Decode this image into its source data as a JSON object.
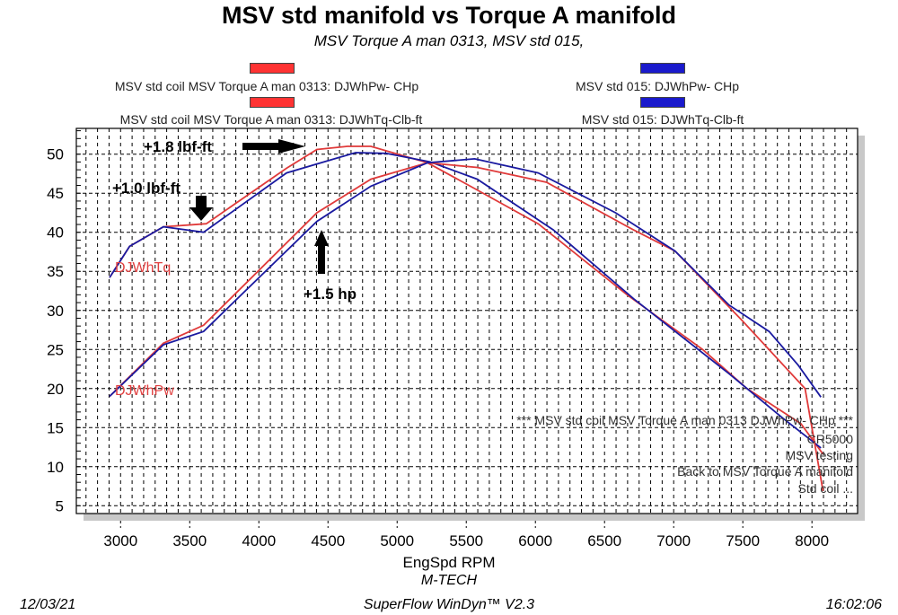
{
  "chart_data": {
    "type": "line",
    "title": "MSV std manifold vs Torque A manifold",
    "subtitle": "MSV Torque A man 0313, MSV std 015,",
    "xlabel": "EngSpd  RPM",
    "xlim": [
      2680,
      8330
    ],
    "ylim": [
      4,
      53.3
    ],
    "xticks": [
      3000,
      3500,
      4000,
      4500,
      5000,
      5500,
      6000,
      6500,
      7000,
      7500,
      8000
    ],
    "yticks": [
      5,
      10,
      15,
      20,
      25,
      30,
      35,
      40,
      45,
      50
    ],
    "grid": true,
    "legend": [
      {
        "label": "MSV std coil MSV Torque A man 0313: DJWhPw- CHp",
        "color": "#ff3333"
      },
      {
        "label": "MSV std 015: DJWhPw- CHp",
        "color": "#1a1acc"
      },
      {
        "label": "MSV std coil MSV Torque A man 0313: DJWhTq-Clb-ft",
        "color": "#ff3333"
      },
      {
        "label": "MSV std 015: DJWhTq-Clb-ft",
        "color": "#1a1acc"
      }
    ],
    "series": [
      {
        "name": "MSV std coil MSV Torque A man 0313: DJWhTq-Clb-ft",
        "color": "#e03a3a",
        "x": [
          2920,
          3065,
          3310,
          3620,
          4200,
          4420,
          4640,
          4810,
          5220,
          5560,
          6020,
          6670,
          7210,
          7530,
          7920,
          8080
        ],
        "y": [
          34.2,
          38.2,
          40.7,
          41.1,
          48.2,
          50.6,
          51.0,
          51.0,
          48.9,
          45.6,
          41.1,
          31.9,
          25.0,
          20.0,
          15.5,
          11.6
        ]
      },
      {
        "name": "MSV std 015: DJWhTq-Clb-ft",
        "color": "#1a1aa0",
        "x": [
          2920,
          3065,
          3310,
          3600,
          4200,
          4700,
          4920,
          5240,
          5580,
          6130,
          6710,
          7400,
          7790,
          8065
        ],
        "y": [
          34.2,
          38.2,
          40.7,
          40.0,
          47.6,
          50.2,
          50.1,
          49.0,
          46.8,
          40.3,
          31.5,
          21.9,
          16.2,
          12.4
        ]
      },
      {
        "name": "MSV std coil MSV Torque A man 0313: DJWhPw- CHp",
        "color": "#e03a3a",
        "x": [
          2920,
          3310,
          3600,
          4420,
          4810,
          5220,
          5580,
          6080,
          6710,
          7010,
          7490,
          7950,
          8080
        ],
        "y": [
          19.0,
          25.8,
          28.1,
          42.5,
          46.8,
          48.9,
          48.3,
          46.4,
          40.3,
          37.6,
          28.8,
          20.0,
          6.9
        ]
      },
      {
        "name": "MSV std 015: DJWhPw- CHp",
        "color": "#1a1aa0",
        "x": [
          2920,
          3310,
          3600,
          4420,
          4810,
          5220,
          5560,
          6020,
          6580,
          7010,
          7400,
          7690,
          7900,
          8065
        ],
        "y": [
          19.0,
          25.6,
          27.3,
          41.4,
          45.9,
          48.9,
          49.4,
          47.6,
          42.5,
          37.6,
          30.7,
          27.3,
          23.0,
          18.9
        ]
      }
    ],
    "series_labels": [
      "DJWhTq",
      "DJWhPw"
    ],
    "annotations": [
      "+1.8 lbf-ft",
      "+1.0 lbf-ft",
      "+1.5 hp"
    ],
    "notes": [
      "*** MSV std coil MSV Torque A man 0313  DJWhPw- CHp   ***",
      "CR5000",
      "MSV  testing",
      "Back to  MSV Torque A manifold",
      "Std   coil ..."
    ]
  },
  "footer": {
    "date": "12/03/21",
    "company": "M-TECH",
    "software": "SuperFlow WinDyn™ V2.3",
    "time": "16:02:06"
  }
}
